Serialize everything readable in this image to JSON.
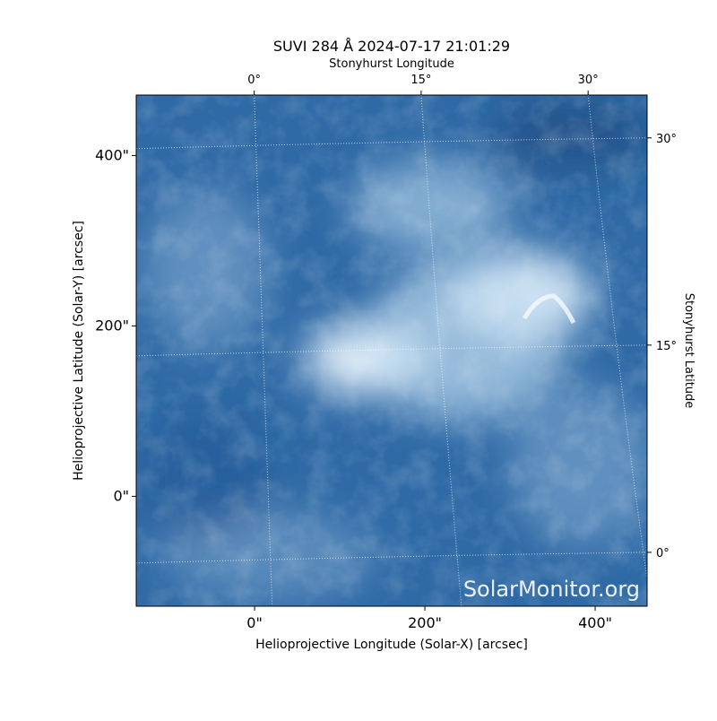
{
  "chart_data": {
    "type": "image",
    "title": "SUVI 284 Å 2024-07-17 21:01:29",
    "xlabel": "Helioprojective Longitude (Solar-X) [arcsec]",
    "ylabel": "Helioprojective Latitude (Solar-Y) [arcsec]",
    "x2label": "Stonyhurst Longitude",
    "y2label": "Stonyhurst Latitude",
    "watermark": "SolarMonitor.org",
    "xlim": [
      -139,
      461
    ],
    "ylim": [
      -129,
      471
    ],
    "xticks": [
      {
        "value": 0,
        "label": "0\""
      },
      {
        "value": 200,
        "label": "200\""
      },
      {
        "value": 400,
        "label": "400\""
      }
    ],
    "yticks": [
      {
        "value": 0,
        "label": "0\""
      },
      {
        "value": 200,
        "label": "200\""
      },
      {
        "value": 400,
        "label": "400\""
      }
    ],
    "x2lim": [
      -10.6,
      35.3
    ],
    "y2lim": [
      -3.9,
      33.1
    ],
    "x2ticks": [
      {
        "value": 0,
        "label": "0°"
      },
      {
        "value": 15,
        "label": "15°"
      },
      {
        "value": 30,
        "label": "30°"
      }
    ],
    "y2ticks": [
      {
        "value": 0,
        "label": "0°"
      },
      {
        "value": 15,
        "label": "15°"
      },
      {
        "value": 30,
        "label": "30°"
      }
    ],
    "grid": true
  }
}
